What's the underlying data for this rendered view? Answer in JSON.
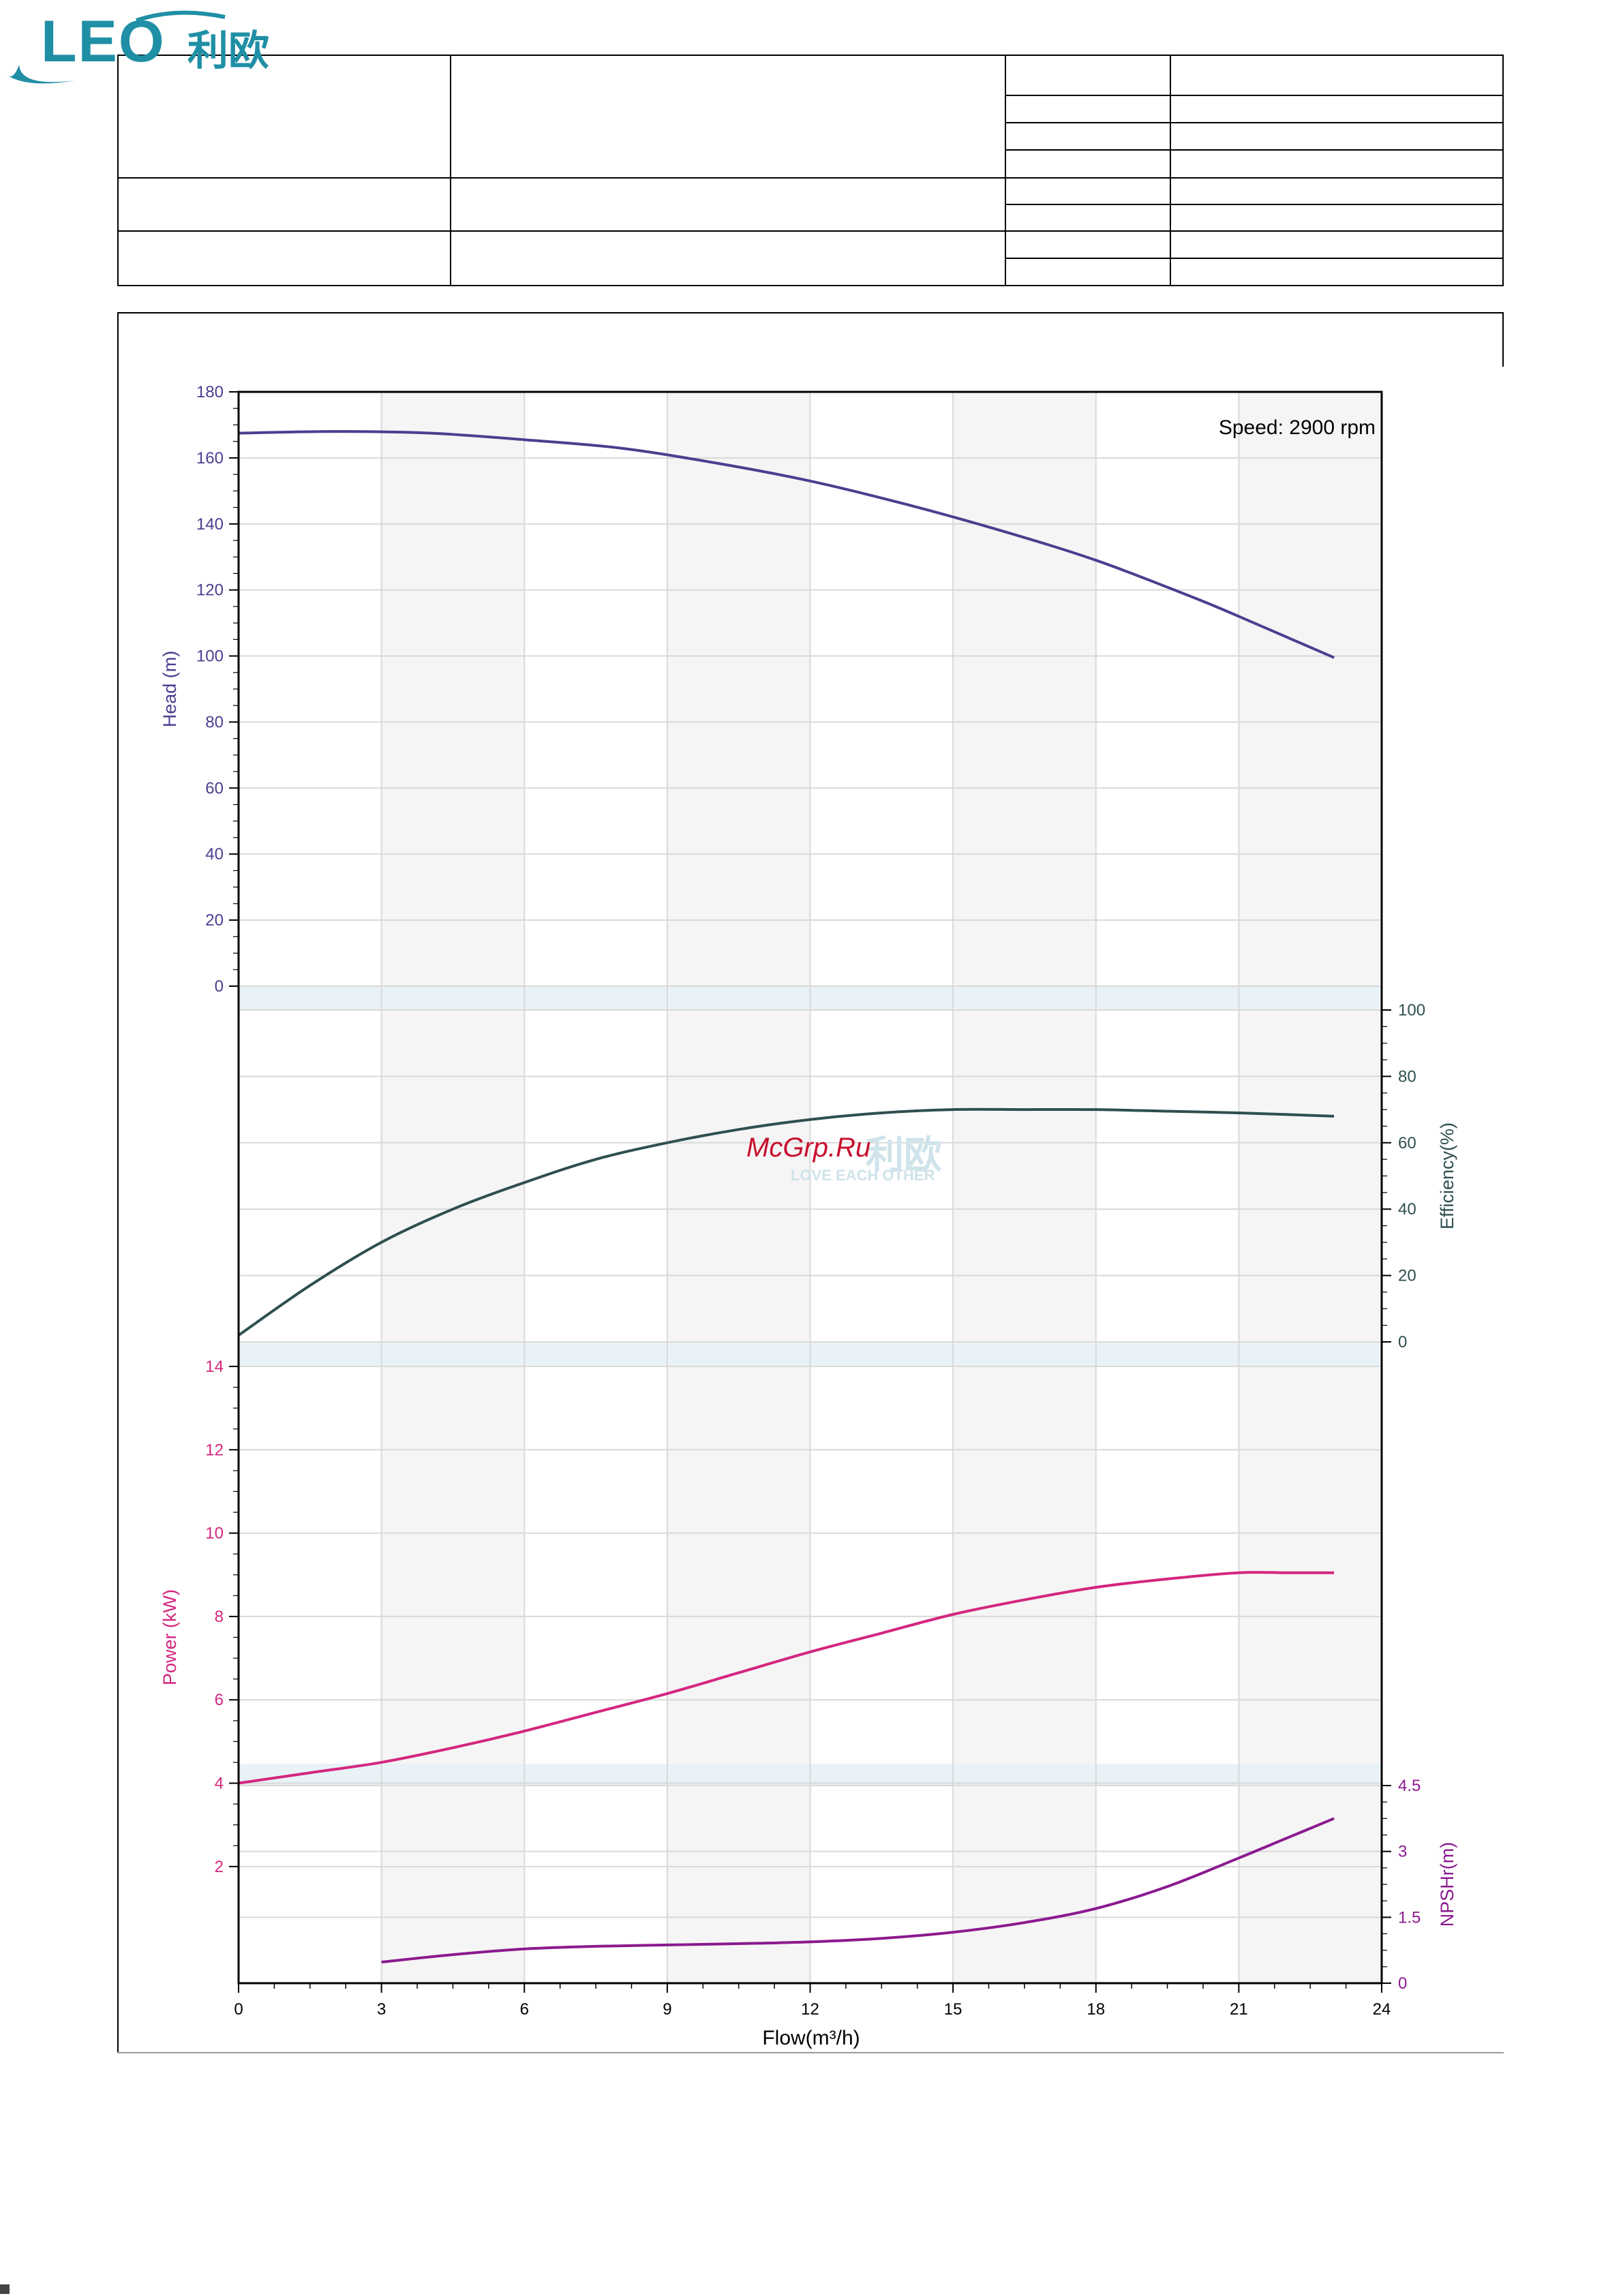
{
  "logo": {
    "text": "LEO",
    "cn": "利欧"
  },
  "watermark": {
    "site": "McGrp.Ru",
    "cn": "利欧",
    "slogan": "LOVE EACH OTHER"
  },
  "colors": {
    "head": "#4a3f8f",
    "efficiency": "#2f4f4f",
    "power": "#d4267f",
    "npsh": "#8b1a8f",
    "band": "#e8f2f7",
    "grid": "#d9d9d9",
    "cell_alt": "#f5f5f5"
  },
  "chart_data": {
    "type": "line",
    "annotation": "Speed: 2900 rpm",
    "xlabel": "Flow(m³/h)",
    "xlim": [
      0,
      24
    ],
    "x_ticks": [
      0,
      3,
      6,
      9,
      12,
      15,
      18,
      21,
      24
    ],
    "panels": [
      {
        "name": "head",
        "ylabel": "Head (m)",
        "axis_side": "left",
        "ylim": [
          0,
          180
        ],
        "y_ticks": [
          0,
          20,
          40,
          60,
          80,
          100,
          120,
          140,
          160,
          180
        ],
        "x": [
          0,
          2,
          4,
          6,
          8,
          10,
          12,
          14,
          16,
          18,
          20,
          21,
          23
        ],
        "y": [
          167.5,
          168,
          167.5,
          165.5,
          163,
          158.5,
          153,
          146,
          138,
          129,
          118,
          112,
          99.5
        ]
      },
      {
        "name": "efficiency",
        "ylabel": "Efficiency(%)",
        "axis_side": "right",
        "ylim": [
          0,
          100
        ],
        "y_ticks": [
          0,
          20,
          40,
          60,
          80,
          100
        ],
        "x": [
          0,
          1.5,
          3,
          4.5,
          6,
          7.5,
          9,
          10.5,
          12,
          13.5,
          15,
          16.5,
          18,
          19.5,
          21,
          23
        ],
        "y": [
          2,
          17,
          30,
          40,
          48,
          55,
          60,
          64,
          67,
          69,
          70,
          70,
          70,
          69.5,
          69,
          68
        ]
      },
      {
        "name": "power",
        "ylabel": "Power (kW)",
        "axis_side": "left",
        "ylim": [
          1,
          14
        ],
        "y_ticks": [
          2,
          4,
          6,
          8,
          10,
          12,
          14
        ],
        "x": [
          0,
          1.5,
          3,
          4.5,
          6,
          7.5,
          9,
          10.5,
          12,
          13.5,
          15,
          16.5,
          18,
          19.5,
          21,
          22,
          23
        ],
        "y": [
          4,
          4.25,
          4.5,
          4.85,
          5.25,
          5.7,
          6.15,
          6.65,
          7.15,
          7.6,
          8.05,
          8.4,
          8.7,
          8.9,
          9.05,
          9.05,
          9.05
        ]
      },
      {
        "name": "npsh",
        "ylabel": "NPSHr(m)",
        "axis_side": "right",
        "ylim": [
          0,
          4.5
        ],
        "y_ticks": [
          0,
          1.5,
          3,
          4.5
        ],
        "x": [
          3,
          4.5,
          6,
          7.5,
          9,
          10.5,
          12,
          13.5,
          15,
          16.5,
          18,
          19.5,
          21,
          22,
          23
        ],
        "y": [
          0.48,
          0.65,
          0.78,
          0.84,
          0.87,
          0.9,
          0.94,
          1.02,
          1.16,
          1.38,
          1.7,
          2.2,
          2.85,
          3.3,
          3.75
        ]
      }
    ]
  }
}
